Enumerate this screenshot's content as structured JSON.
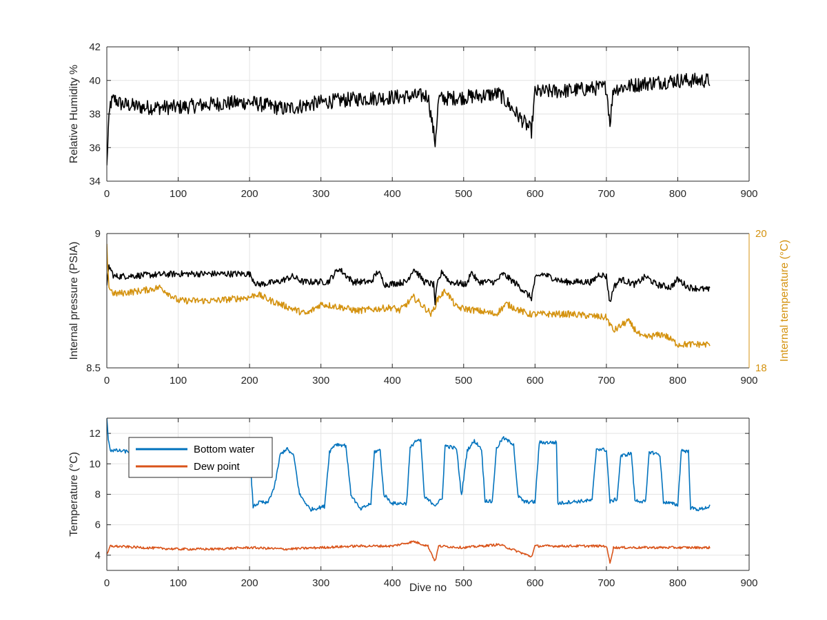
{
  "chart_data": [
    {
      "type": "line",
      "xlabel": "",
      "ylabel": "Relative Humidity %",
      "xlim": [
        0,
        900
      ],
      "ylim": [
        34,
        42
      ],
      "x_ticks": [
        "0",
        "100",
        "200",
        "300",
        "400",
        "500",
        "600",
        "700",
        "800",
        "900"
      ],
      "y_ticks": [
        "34",
        "36",
        "38",
        "40",
        "42"
      ],
      "grid": true,
      "series": [
        {
          "color": "#000000",
          "noise": 0.45,
          "points": [
            [
              0,
              34.8
            ],
            [
              2,
              37.0
            ],
            [
              5,
              38.6
            ],
            [
              10,
              38.9
            ],
            [
              20,
              38.6
            ],
            [
              50,
              38.4
            ],
            [
              100,
              38.4
            ],
            [
              150,
              38.6
            ],
            [
              200,
              38.7
            ],
            [
              250,
              38.3
            ],
            [
              300,
              38.7
            ],
            [
              350,
              38.9
            ],
            [
              400,
              39.0
            ],
            [
              450,
              39.1
            ],
            [
              460,
              36.3
            ],
            [
              465,
              38.9
            ],
            [
              500,
              39.0
            ],
            [
              550,
              39.2
            ],
            [
              595,
              37.0
            ],
            [
              600,
              39.3
            ],
            [
              650,
              39.4
            ],
            [
              700,
              39.6
            ],
            [
              705,
              37.5
            ],
            [
              710,
              39.5
            ],
            [
              750,
              39.8
            ],
            [
              800,
              40.0
            ],
            [
              845,
              40.0
            ]
          ]
        }
      ]
    },
    {
      "type": "line",
      "xlabel": "",
      "ylabel": "Internal pressure (PSIA)",
      "ylabel_right": "Internal temperature (°C)",
      "xlim": [
        0,
        900
      ],
      "ylim": [
        8.5,
        9
      ],
      "ylim_right": [
        18,
        20
      ],
      "x_ticks": [
        "0",
        "100",
        "200",
        "300",
        "400",
        "500",
        "600",
        "700",
        "800",
        "900"
      ],
      "y_ticks": [
        "8.5",
        "9"
      ],
      "y_ticks_right": [
        "18",
        "20"
      ],
      "grid": true,
      "series": [
        {
          "axis": "left",
          "color": "#000000",
          "noise": 0.012,
          "points": [
            [
              0,
              8.8
            ],
            [
              3,
              8.88
            ],
            [
              10,
              8.84
            ],
            [
              100,
              8.85
            ],
            [
              200,
              8.85
            ],
            [
              210,
              8.81
            ],
            [
              240,
              8.82
            ],
            [
              260,
              8.84
            ],
            [
              275,
              8.82
            ],
            [
              310,
              8.82
            ],
            [
              325,
              8.87
            ],
            [
              345,
              8.82
            ],
            [
              370,
              8.82
            ],
            [
              380,
              8.86
            ],
            [
              390,
              8.81
            ],
            [
              420,
              8.82
            ],
            [
              430,
              8.87
            ],
            [
              445,
              8.82
            ],
            [
              458,
              8.81
            ],
            [
              460,
              8.74
            ],
            [
              463,
              8.81
            ],
            [
              470,
              8.86
            ],
            [
              480,
              8.82
            ],
            [
              505,
              8.81
            ],
            [
              510,
              8.86
            ],
            [
              520,
              8.82
            ],
            [
              545,
              8.82
            ],
            [
              555,
              8.85
            ],
            [
              575,
              8.81
            ],
            [
              595,
              8.76
            ],
            [
              600,
              8.83
            ],
            [
              610,
              8.85
            ],
            [
              640,
              8.82
            ],
            [
              680,
              8.82
            ],
            [
              690,
              8.85
            ],
            [
              700,
              8.84
            ],
            [
              705,
              8.74
            ],
            [
              710,
              8.8
            ],
            [
              720,
              8.83
            ],
            [
              740,
              8.81
            ],
            [
              755,
              8.84
            ],
            [
              770,
              8.81
            ],
            [
              790,
              8.8
            ],
            [
              800,
              8.83
            ],
            [
              815,
              8.8
            ],
            [
              845,
              8.79
            ]
          ]
        },
        {
          "axis": "right",
          "color": "#D4920F",
          "noise": 0.05,
          "points": [
            [
              0,
              19.8
            ],
            [
              3,
              19.2
            ],
            [
              10,
              19.1
            ],
            [
              50,
              19.15
            ],
            [
              75,
              19.2
            ],
            [
              100,
              19.0
            ],
            [
              150,
              19.0
            ],
            [
              200,
              19.05
            ],
            [
              210,
              19.1
            ],
            [
              230,
              19.0
            ],
            [
              280,
              18.8
            ],
            [
              300,
              18.95
            ],
            [
              330,
              18.9
            ],
            [
              350,
              18.85
            ],
            [
              400,
              18.9
            ],
            [
              410,
              18.85
            ],
            [
              430,
              19.05
            ],
            [
              455,
              18.8
            ],
            [
              465,
              19.05
            ],
            [
              475,
              19.15
            ],
            [
              490,
              18.9
            ],
            [
              520,
              18.85
            ],
            [
              545,
              18.8
            ],
            [
              560,
              18.95
            ],
            [
              590,
              18.8
            ],
            [
              650,
              18.8
            ],
            [
              700,
              18.75
            ],
            [
              710,
              18.55
            ],
            [
              730,
              18.7
            ],
            [
              750,
              18.45
            ],
            [
              780,
              18.5
            ],
            [
              800,
              18.35
            ],
            [
              845,
              18.35
            ]
          ]
        }
      ]
    },
    {
      "type": "line",
      "xlabel": "Dive no",
      "ylabel": "Temperature (°C)",
      "xlim": [
        0,
        900
      ],
      "ylim": [
        3,
        13
      ],
      "x_ticks": [
        "0",
        "100",
        "200",
        "300",
        "400",
        "500",
        "600",
        "700",
        "800",
        "900"
      ],
      "y_ticks": [
        "4",
        "6",
        "8",
        "10",
        "12"
      ],
      "grid": true,
      "legend_position": "top-left",
      "series": [
        {
          "name": "Bottom water",
          "color": "#0072BD",
          "noise": 0.12,
          "points": [
            [
              0,
              12.9
            ],
            [
              2,
              11.7
            ],
            [
              5,
              10.9
            ],
            [
              30,
              10.8
            ],
            [
              60,
              10.8
            ],
            [
              100,
              10.8
            ],
            [
              150,
              10.9
            ],
            [
              200,
              10.9
            ],
            [
              205,
              7.2
            ],
            [
              215,
              7.5
            ],
            [
              225,
              7.4
            ],
            [
              235,
              8.5
            ],
            [
              243,
              10.6
            ],
            [
              252,
              11.0
            ],
            [
              262,
              10.5
            ],
            [
              270,
              8.0
            ],
            [
              285,
              7.0
            ],
            [
              305,
              7.2
            ],
            [
              312,
              10.8
            ],
            [
              320,
              11.3
            ],
            [
              335,
              11.2
            ],
            [
              342,
              8.0
            ],
            [
              355,
              7.0
            ],
            [
              370,
              7.4
            ],
            [
              375,
              10.8
            ],
            [
              383,
              10.9
            ],
            [
              388,
              8.0
            ],
            [
              400,
              7.4
            ],
            [
              420,
              7.4
            ],
            [
              425,
              11.0
            ],
            [
              432,
              11.5
            ],
            [
              440,
              11.5
            ],
            [
              445,
              7.8
            ],
            [
              460,
              7.3
            ],
            [
              470,
              7.7
            ],
            [
              474,
              11.2
            ],
            [
              490,
              11.0
            ],
            [
              497,
              7.9
            ],
            [
              505,
              10.9
            ],
            [
              515,
              11.5
            ],
            [
              525,
              11.0
            ],
            [
              530,
              7.6
            ],
            [
              540,
              7.5
            ],
            [
              546,
              11.0
            ],
            [
              555,
              11.7
            ],
            [
              570,
              11.3
            ],
            [
              576,
              7.9
            ],
            [
              585,
              7.5
            ],
            [
              600,
              7.5
            ],
            [
              606,
              11.4
            ],
            [
              630,
              11.4
            ],
            [
              632,
              7.4
            ],
            [
              650,
              7.5
            ],
            [
              680,
              7.6
            ],
            [
              686,
              11.0
            ],
            [
              700,
              10.9
            ],
            [
              705,
              7.5
            ],
            [
              715,
              7.7
            ],
            [
              720,
              10.5
            ],
            [
              735,
              10.7
            ],
            [
              740,
              7.6
            ],
            [
              755,
              7.5
            ],
            [
              760,
              10.8
            ],
            [
              775,
              10.6
            ],
            [
              780,
              7.5
            ],
            [
              800,
              7.3
            ],
            [
              805,
              10.9
            ],
            [
              815,
              10.8
            ],
            [
              818,
              7.1
            ],
            [
              830,
              7.0
            ],
            [
              845,
              7.2
            ]
          ]
        },
        {
          "name": "Dew point",
          "color": "#D95319",
          "noise": 0.08,
          "points": [
            [
              0,
              4.0
            ],
            [
              5,
              4.6
            ],
            [
              50,
              4.5
            ],
            [
              100,
              4.4
            ],
            [
              150,
              4.4
            ],
            [
              200,
              4.5
            ],
            [
              250,
              4.4
            ],
            [
              300,
              4.5
            ],
            [
              350,
              4.6
            ],
            [
              400,
              4.6
            ],
            [
              430,
              4.9
            ],
            [
              450,
              4.6
            ],
            [
              460,
              3.6
            ],
            [
              465,
              4.6
            ],
            [
              500,
              4.5
            ],
            [
              550,
              4.7
            ],
            [
              595,
              3.9
            ],
            [
              600,
              4.6
            ],
            [
              650,
              4.6
            ],
            [
              700,
              4.6
            ],
            [
              705,
              3.5
            ],
            [
              710,
              4.5
            ],
            [
              750,
              4.5
            ],
            [
              800,
              4.5
            ],
            [
              845,
              4.5
            ]
          ]
        }
      ]
    }
  ]
}
